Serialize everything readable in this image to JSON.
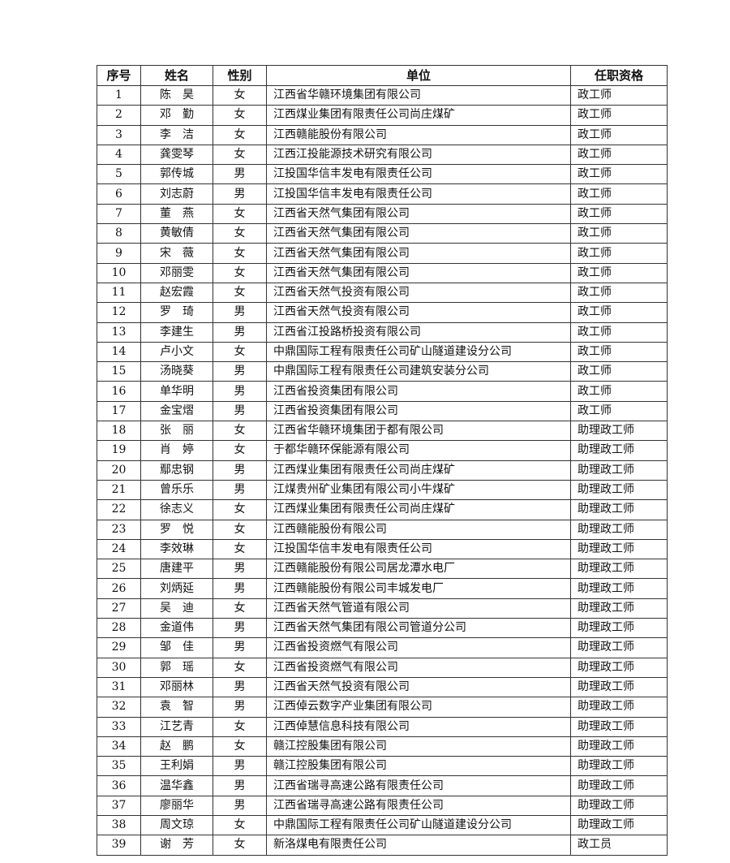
{
  "table": {
    "headers": [
      "序号",
      "姓名",
      "性别",
      "单位",
      "任职资格"
    ],
    "rows": [
      [
        "1",
        "陈　昊",
        "女",
        "江西省华赣环境集团有限公司",
        "政工师"
      ],
      [
        "2",
        "邓　勤",
        "女",
        "江西煤业集团有限责任公司尚庄煤矿",
        "政工师"
      ],
      [
        "3",
        "李　洁",
        "女",
        "江西赣能股份有限公司",
        "政工师"
      ],
      [
        "4",
        "龚雯琴",
        "女",
        "江西江投能源技术研究有限公司",
        "政工师"
      ],
      [
        "5",
        "郭传城",
        "男",
        "江投国华信丰发电有限责任公司",
        "政工师"
      ],
      [
        "6",
        "刘志蔚",
        "男",
        "江投国华信丰发电有限责任公司",
        "政工师"
      ],
      [
        "7",
        "董　燕",
        "女",
        "江西省天然气集团有限公司",
        "政工师"
      ],
      [
        "8",
        "黄敏倩",
        "女",
        "江西省天然气集团有限公司",
        "政工师"
      ],
      [
        "9",
        "宋　薇",
        "女",
        "江西省天然气集团有限公司",
        "政工师"
      ],
      [
        "10",
        "邓丽雯",
        "女",
        "江西省天然气集团有限公司",
        "政工师"
      ],
      [
        "11",
        "赵宏霞",
        "女",
        "江西省天然气投资有限公司",
        "政工师"
      ],
      [
        "12",
        "罗　琦",
        "男",
        "江西省天然气投资有限公司",
        "政工师"
      ],
      [
        "13",
        "李建生",
        "男",
        "江西省江投路桥投资有限公司",
        "政工师"
      ],
      [
        "14",
        "卢小文",
        "女",
        "中鼎国际工程有限责任公司矿山隧道建设分公司",
        "政工师"
      ],
      [
        "15",
        "汤晓葵",
        "男",
        "中鼎国际工程有限责任公司建筑安装分公司",
        "政工师"
      ],
      [
        "16",
        "单华明",
        "男",
        "江西省投资集团有限公司",
        "政工师"
      ],
      [
        "17",
        "金宝熠",
        "男",
        "江西省投资集团有限公司",
        "政工师"
      ],
      [
        "18",
        "张　丽",
        "女",
        "江西省华赣环境集团于都有限公司",
        "助理政工师"
      ],
      [
        "19",
        "肖　婷",
        "女",
        "于都华赣环保能源有限公司",
        "助理政工师"
      ],
      [
        "20",
        "鄢忠钢",
        "男",
        "江西煤业集团有限责任公司尚庄煤矿",
        "助理政工师"
      ],
      [
        "21",
        "曾乐乐",
        "男",
        "江煤贵州矿业集团有限公司小牛煤矿",
        "助理政工师"
      ],
      [
        "22",
        "徐志义",
        "女",
        "江西煤业集团有限责任公司尚庄煤矿",
        "助理政工师"
      ],
      [
        "23",
        "罗　悦",
        "女",
        "江西赣能股份有限公司",
        "助理政工师"
      ],
      [
        "24",
        "李效琳",
        "女",
        "江投国华信丰发电有限责任公司",
        "助理政工师"
      ],
      [
        "25",
        "唐建平",
        "男",
        "江西赣能股份有限公司居龙潭水电厂",
        "助理政工师"
      ],
      [
        "26",
        "刘炳延",
        "男",
        "江西赣能股份有限公司丰城发电厂",
        "助理政工师"
      ],
      [
        "27",
        "吴　迪",
        "女",
        "江西省天然气管道有限公司",
        "助理政工师"
      ],
      [
        "28",
        "金道伟",
        "男",
        "江西省天然气集团有限公司管道分公司",
        "助理政工师"
      ],
      [
        "29",
        "邹　佳",
        "男",
        "江西省投资燃气有限公司",
        "助理政工师"
      ],
      [
        "30",
        "郭　瑶",
        "女",
        "江西省投资燃气有限公司",
        "助理政工师"
      ],
      [
        "31",
        "邓丽林",
        "男",
        "江西省天然气投资有限公司",
        "助理政工师"
      ],
      [
        "32",
        "袁　智",
        "男",
        "江西倬云数字产业集团有限公司",
        "助理政工师"
      ],
      [
        "33",
        "江艺青",
        "女",
        "江西倬慧信息科技有限公司",
        "助理政工师"
      ],
      [
        "34",
        "赵　鹏",
        "女",
        "赣江控股集团有限公司",
        "助理政工师"
      ],
      [
        "35",
        "王利娟",
        "男",
        "赣江控股集团有限公司",
        "助理政工师"
      ],
      [
        "36",
        "温华鑫",
        "男",
        "江西省瑞寻高速公路有限责任公司",
        "助理政工师"
      ],
      [
        "37",
        "廖丽华",
        "男",
        "江西省瑞寻高速公路有限责任公司",
        "助理政工师"
      ],
      [
        "38",
        "周文琼",
        "女",
        "中鼎国际工程有限责任公司矿山隧道建设分公司",
        "助理政工师"
      ],
      [
        "39",
        "谢　芳",
        "女",
        "新洛煤电有限责任公司",
        "政工员"
      ]
    ]
  }
}
